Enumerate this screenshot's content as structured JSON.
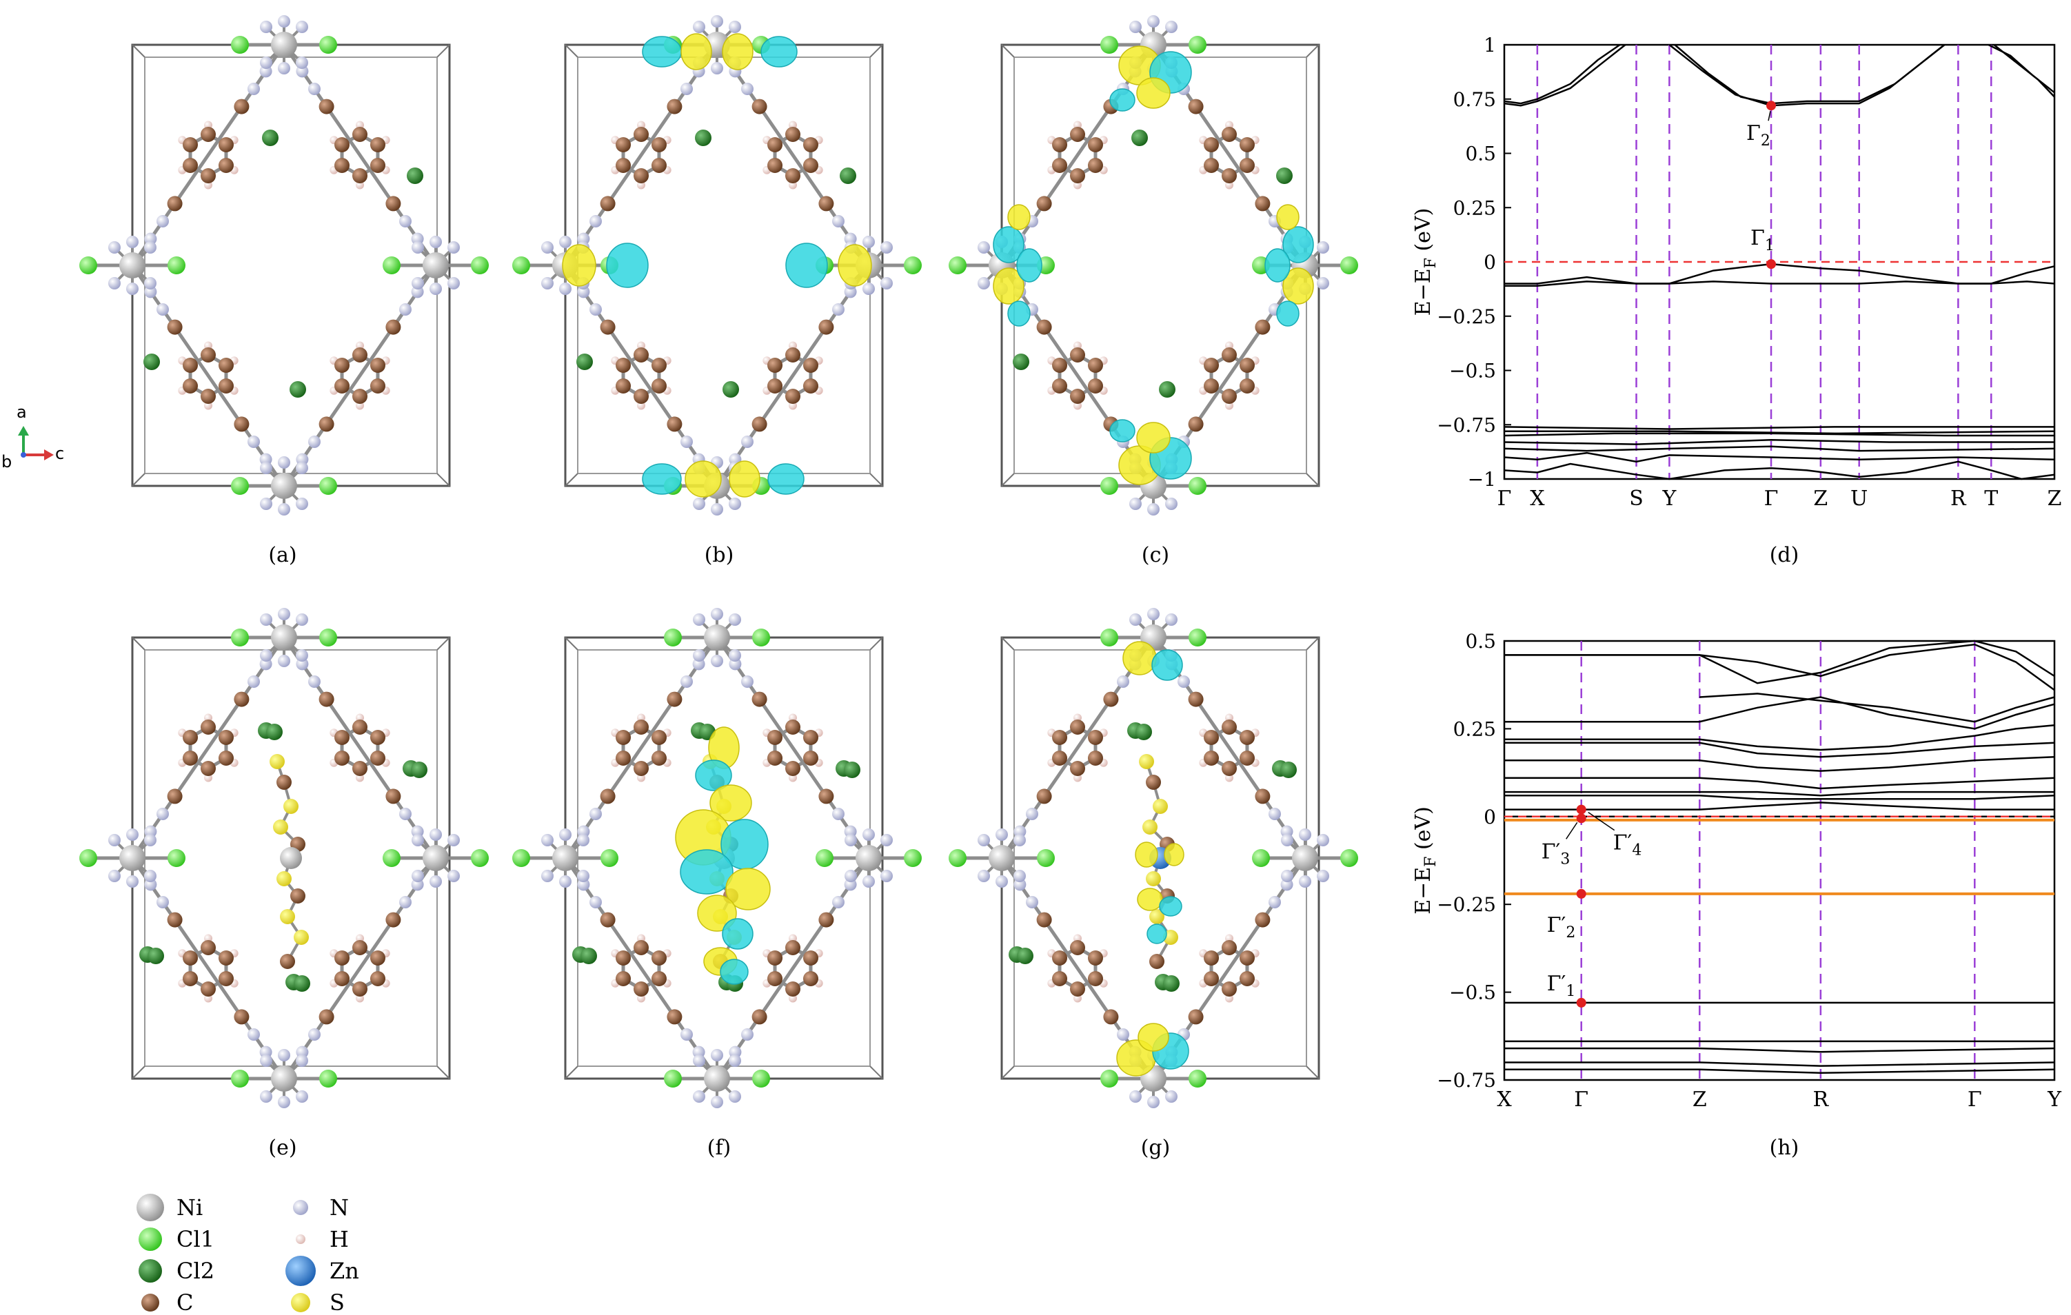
{
  "captions": [
    "(a)",
    "(b)",
    "(c)",
    "(d)",
    "(e)",
    "(f)",
    "(g)",
    "(h)"
  ],
  "axes_indicator": {
    "a": "a",
    "b": "b",
    "c": "c"
  },
  "legend": {
    "left": [
      {
        "label": "Ni",
        "color": "#a8a8a8"
      },
      {
        "label": "Cl1",
        "color": "#43dc2a"
      },
      {
        "label": "Cl2",
        "color": "#1f7a1f"
      },
      {
        "label": "C",
        "color": "#7b4a2e"
      }
    ],
    "right": [
      {
        "label": "N",
        "color": "#b4b8d8"
      },
      {
        "label": "H",
        "color": "#e9c9c4"
      },
      {
        "label": "Zn",
        "color": "#2f7fd6"
      },
      {
        "label": "S",
        "color": "#f0e43a"
      }
    ]
  },
  "chart_data": [
    {
      "id": "d",
      "type": "line",
      "ylabel": "E−E",
      "ylabel_sub": "F",
      "ylabel_unit": " (eV)",
      "ylim": [
        -1,
        1
      ],
      "yticks": [
        1,
        0.75,
        0.5,
        0.25,
        0,
        -0.25,
        -0.5,
        -0.75,
        -1
      ],
      "ytick_labels": [
        "1",
        "0.75",
        "0.5",
        "0.25",
        "0",
        "−0.25",
        "−0.5",
        "−0.75",
        "−1"
      ],
      "kpoints": [
        {
          "label": "Γ",
          "x": 0
        },
        {
          "label": "X",
          "x": 0.06
        },
        {
          "label": "S",
          "x": 0.24
        },
        {
          "label": "Y",
          "x": 0.3
        },
        {
          "label": "Γ",
          "x": 0.485
        },
        {
          "label": "Z",
          "x": 0.575
        },
        {
          "label": "U",
          "x": 0.645
        },
        {
          "label": "R",
          "x": 0.825
        },
        {
          "label": "T",
          "x": 0.885
        },
        {
          "label": "Z",
          "x": 1.0
        }
      ],
      "fermi": 0,
      "marked": [
        {
          "label": "Γ",
          "sub": "2",
          "x": 0.485,
          "y": 0.72
        },
        {
          "label": "Γ",
          "sub": "1",
          "x": 0.485,
          "y": -0.01
        }
      ],
      "bands": [
        [
          [
            0,
            0.73
          ],
          [
            0.03,
            0.72
          ],
          [
            0.06,
            0.74
          ],
          [
            0.12,
            0.8
          ],
          [
            0.18,
            0.92
          ],
          [
            0.22,
            1.0
          ]
        ],
        [
          [
            0,
            0.74
          ],
          [
            0.03,
            0.73
          ],
          [
            0.06,
            0.75
          ],
          [
            0.12,
            0.82
          ],
          [
            0.17,
            0.93
          ],
          [
            0.21,
            1.0
          ]
        ],
        [
          [
            0.3,
            1.0
          ],
          [
            0.36,
            0.88
          ],
          [
            0.42,
            0.77
          ],
          [
            0.485,
            0.72
          ],
          [
            0.55,
            0.73
          ],
          [
            0.645,
            0.73
          ],
          [
            0.7,
            0.8
          ],
          [
            0.76,
            0.92
          ],
          [
            0.8,
            1.0
          ]
        ],
        [
          [
            0.31,
            1.0
          ],
          [
            0.37,
            0.87
          ],
          [
            0.43,
            0.76
          ],
          [
            0.485,
            0.73
          ],
          [
            0.55,
            0.74
          ],
          [
            0.645,
            0.74
          ],
          [
            0.71,
            0.82
          ],
          [
            0.77,
            0.94
          ],
          [
            0.8,
            1.0
          ]
        ],
        [
          [
            0.88,
            1.0
          ],
          [
            0.92,
            0.95
          ],
          [
            0.96,
            0.86
          ],
          [
            1.0,
            0.78
          ]
        ],
        [
          [
            0.89,
            1.0
          ],
          [
            0.93,
            0.92
          ],
          [
            0.97,
            0.84
          ],
          [
            1.0,
            0.76
          ]
        ],
        [
          [
            0,
            -0.1
          ],
          [
            0.06,
            -0.1
          ],
          [
            0.15,
            -0.07
          ],
          [
            0.24,
            -0.1
          ],
          [
            0.3,
            -0.1
          ],
          [
            0.38,
            -0.04
          ],
          [
            0.485,
            -0.01
          ],
          [
            0.575,
            -0.03
          ],
          [
            0.645,
            -0.04
          ],
          [
            0.73,
            -0.07
          ],
          [
            0.825,
            -0.1
          ],
          [
            0.885,
            -0.1
          ],
          [
            0.95,
            -0.05
          ],
          [
            1.0,
            -0.02
          ]
        ],
        [
          [
            0,
            -0.11
          ],
          [
            0.06,
            -0.11
          ],
          [
            0.15,
            -0.09
          ],
          [
            0.24,
            -0.1
          ],
          [
            0.3,
            -0.1
          ],
          [
            0.38,
            -0.09
          ],
          [
            0.485,
            -0.1
          ],
          [
            0.575,
            -0.1
          ],
          [
            0.645,
            -0.1
          ],
          [
            0.73,
            -0.09
          ],
          [
            0.825,
            -0.1
          ],
          [
            0.885,
            -0.1
          ],
          [
            0.95,
            -0.09
          ],
          [
            1.0,
            -0.1
          ]
        ],
        [
          [
            0,
            -0.76
          ],
          [
            0.3,
            -0.77
          ],
          [
            0.6,
            -0.76
          ],
          [
            1.0,
            -0.76
          ]
        ],
        [
          [
            0,
            -0.78
          ],
          [
            0.3,
            -0.78
          ],
          [
            0.6,
            -0.79
          ],
          [
            1.0,
            -0.78
          ]
        ],
        [
          [
            0,
            -0.8
          ],
          [
            0.2,
            -0.79
          ],
          [
            0.485,
            -0.79
          ],
          [
            0.8,
            -0.8
          ],
          [
            1.0,
            -0.8
          ]
        ],
        [
          [
            0,
            -0.83
          ],
          [
            0.24,
            -0.84
          ],
          [
            0.485,
            -0.82
          ],
          [
            0.7,
            -0.83
          ],
          [
            1.0,
            -0.83
          ]
        ],
        [
          [
            0,
            -0.86
          ],
          [
            0.15,
            -0.87
          ],
          [
            0.3,
            -0.86
          ],
          [
            0.485,
            -0.85
          ],
          [
            0.645,
            -0.87
          ],
          [
            1.0,
            -0.86
          ]
        ],
        [
          [
            0,
            -0.9
          ],
          [
            0.06,
            -0.91
          ],
          [
            0.15,
            -0.88
          ],
          [
            0.24,
            -0.92
          ],
          [
            0.3,
            -0.89
          ],
          [
            0.485,
            -0.9
          ],
          [
            0.645,
            -0.91
          ],
          [
            0.825,
            -0.9
          ],
          [
            1.0,
            -0.91
          ]
        ],
        [
          [
            0,
            -0.96
          ],
          [
            0.06,
            -0.97
          ],
          [
            0.12,
            -0.93
          ],
          [
            0.24,
            -0.98
          ],
          [
            0.3,
            -1.0
          ],
          [
            0.4,
            -0.96
          ],
          [
            0.485,
            -0.95
          ],
          [
            0.55,
            -0.96
          ],
          [
            0.645,
            -0.99
          ],
          [
            0.73,
            -0.97
          ],
          [
            0.825,
            -0.92
          ],
          [
            0.885,
            -0.96
          ],
          [
            0.94,
            -1.0
          ],
          [
            1.0,
            -0.98
          ]
        ]
      ]
    },
    {
      "id": "h",
      "type": "line",
      "ylabel": "E−E",
      "ylabel_sub": "F",
      "ylabel_unit": " (eV)",
      "ylim": [
        -0.75,
        0.5
      ],
      "yticks": [
        0.5,
        0.25,
        0,
        -0.25,
        -0.5,
        -0.75
      ],
      "ytick_labels": [
        "0.5",
        "0.25",
        "0",
        "−0.25",
        "−0.5",
        "−0.75"
      ],
      "kpoints": [
        {
          "label": "X",
          "x": 0
        },
        {
          "label": "Γ",
          "x": 0.14
        },
        {
          "label": "Z",
          "x": 0.355
        },
        {
          "label": "R",
          "x": 0.575
        },
        {
          "label": "Γ",
          "x": 0.855
        },
        {
          "label": "Y",
          "x": 1.0
        }
      ],
      "fermi": 0,
      "orange_bands": [
        -0.01,
        -0.22
      ],
      "marked": [
        {
          "label": "Γ′",
          "sub": "4",
          "x": 0.14,
          "y": 0.02
        },
        {
          "label": "Γ′",
          "sub": "3",
          "x": 0.14,
          "y": -0.005
        },
        {
          "label": "Γ′",
          "sub": "2",
          "x": 0.14,
          "y": -0.22
        },
        {
          "label": "Γ′",
          "sub": "1",
          "x": 0.14,
          "y": -0.53
        }
      ],
      "bands": [
        [
          [
            0,
            0.46
          ],
          [
            0.355,
            0.46
          ],
          [
            0.46,
            0.44
          ],
          [
            0.575,
            0.4
          ],
          [
            0.7,
            0.46
          ],
          [
            0.855,
            0.49
          ],
          [
            0.93,
            0.44
          ],
          [
            1.0,
            0.36
          ]
        ],
        [
          [
            0,
            0.46
          ],
          [
            0.355,
            0.46
          ],
          [
            0.46,
            0.38
          ],
          [
            0.575,
            0.41
          ],
          [
            0.7,
            0.48
          ],
          [
            0.855,
            0.5
          ],
          [
            0.93,
            0.47
          ],
          [
            1.0,
            0.4
          ]
        ],
        [
          [
            0.355,
            0.34
          ],
          [
            0.46,
            0.35
          ],
          [
            0.575,
            0.33
          ],
          [
            0.7,
            0.31
          ],
          [
            0.855,
            0.27
          ],
          [
            0.93,
            0.31
          ],
          [
            1.0,
            0.34
          ]
        ],
        [
          [
            0,
            0.27
          ],
          [
            0.355,
            0.27
          ],
          [
            0.46,
            0.31
          ],
          [
            0.575,
            0.34
          ],
          [
            0.7,
            0.29
          ],
          [
            0.855,
            0.25
          ],
          [
            0.93,
            0.29
          ],
          [
            1.0,
            0.32
          ]
        ],
        [
          [
            0,
            0.22
          ],
          [
            0.355,
            0.22
          ],
          [
            0.46,
            0.2
          ],
          [
            0.575,
            0.19
          ],
          [
            0.7,
            0.2
          ],
          [
            0.855,
            0.23
          ],
          [
            0.93,
            0.25
          ],
          [
            1.0,
            0.26
          ]
        ],
        [
          [
            0,
            0.21
          ],
          [
            0.355,
            0.21
          ],
          [
            0.46,
            0.18
          ],
          [
            0.575,
            0.17
          ],
          [
            0.7,
            0.18
          ],
          [
            0.855,
            0.2
          ],
          [
            1.0,
            0.21
          ]
        ],
        [
          [
            0,
            0.16
          ],
          [
            0.355,
            0.16
          ],
          [
            0.46,
            0.14
          ],
          [
            0.575,
            0.13
          ],
          [
            0.7,
            0.14
          ],
          [
            0.855,
            0.16
          ],
          [
            1.0,
            0.17
          ]
        ],
        [
          [
            0,
            0.11
          ],
          [
            0.355,
            0.11
          ],
          [
            0.46,
            0.1
          ],
          [
            0.575,
            0.08
          ],
          [
            0.7,
            0.09
          ],
          [
            0.855,
            0.1
          ],
          [
            1.0,
            0.11
          ]
        ],
        [
          [
            0,
            0.07
          ],
          [
            0.355,
            0.07
          ],
          [
            0.46,
            0.07
          ],
          [
            0.575,
            0.06
          ],
          [
            0.7,
            0.07
          ],
          [
            0.855,
            0.07
          ],
          [
            1.0,
            0.07
          ]
        ],
        [
          [
            0,
            0.06
          ],
          [
            0.355,
            0.06
          ],
          [
            0.46,
            0.05
          ],
          [
            0.575,
            0.05
          ],
          [
            0.7,
            0.05
          ],
          [
            0.855,
            0.05
          ],
          [
            1.0,
            0.06
          ]
        ],
        [
          [
            0,
            0.02
          ],
          [
            0.355,
            0.02
          ],
          [
            0.46,
            0.03
          ],
          [
            0.575,
            0.04
          ],
          [
            0.7,
            0.03
          ],
          [
            0.855,
            0.02
          ],
          [
            1.0,
            0.02
          ]
        ],
        [
          [
            0,
            0.0
          ],
          [
            0.355,
            0.0
          ],
          [
            0.575,
            0.0
          ],
          [
            1.0,
            0.0
          ]
        ],
        [
          [
            0,
            -0.53
          ],
          [
            0.355,
            -0.53
          ],
          [
            0.575,
            -0.53
          ],
          [
            1.0,
            -0.53
          ]
        ],
        [
          [
            0,
            -0.64
          ],
          [
            0.355,
            -0.64
          ],
          [
            0.575,
            -0.64
          ],
          [
            1.0,
            -0.64
          ]
        ],
        [
          [
            0,
            -0.66
          ],
          [
            0.355,
            -0.66
          ],
          [
            0.575,
            -0.67
          ],
          [
            1.0,
            -0.66
          ]
        ],
        [
          [
            0,
            -0.7
          ],
          [
            0.355,
            -0.7
          ],
          [
            0.575,
            -0.71
          ],
          [
            1.0,
            -0.7
          ]
        ],
        [
          [
            0,
            -0.72
          ],
          [
            0.355,
            -0.72
          ],
          [
            0.575,
            -0.73
          ],
          [
            1.0,
            -0.72
          ]
        ]
      ]
    }
  ]
}
